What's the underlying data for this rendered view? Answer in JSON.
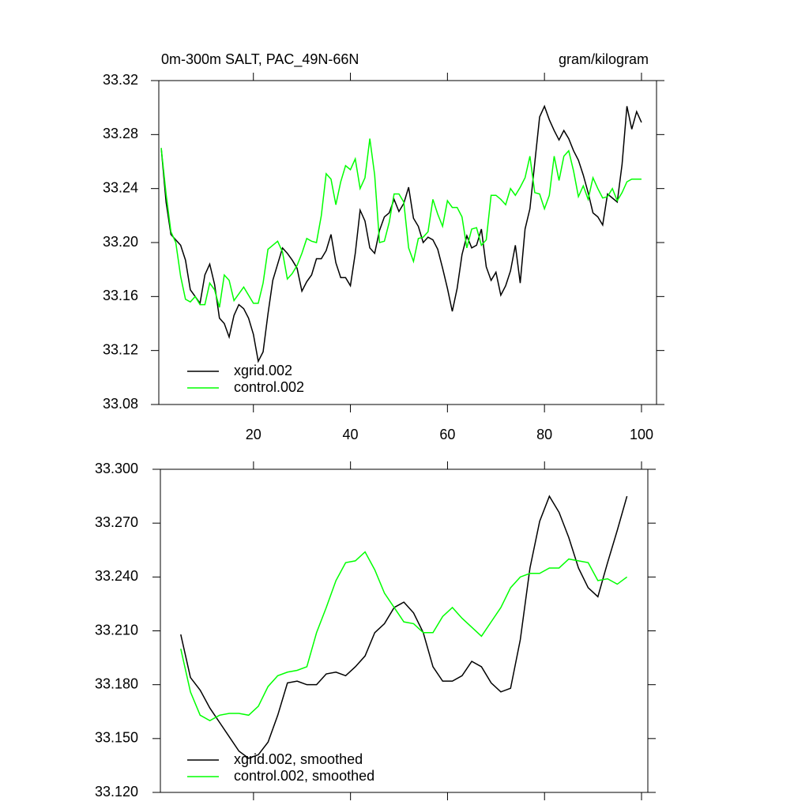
{
  "chart_data": [
    {
      "type": "line",
      "title": "0m-300m SALT, PAC_49N-66N",
      "units": "gram/kilogram",
      "x": [
        1,
        2,
        3,
        4,
        5,
        6,
        7,
        8,
        9,
        10,
        11,
        12,
        13,
        14,
        15,
        16,
        17,
        18,
        19,
        20,
        21,
        22,
        23,
        24,
        25,
        26,
        27,
        28,
        29,
        30,
        31,
        32,
        33,
        34,
        35,
        36,
        37,
        38,
        39,
        40,
        41,
        42,
        43,
        44,
        45,
        46,
        47,
        48,
        49,
        50,
        51,
        52,
        53,
        54,
        55,
        56,
        57,
        58,
        59,
        60,
        61,
        62,
        63,
        64,
        65,
        66,
        67,
        68,
        69,
        70,
        71,
        72,
        73,
        74,
        75,
        76,
        77,
        78,
        79,
        80,
        81,
        82,
        83,
        84,
        85,
        86,
        87,
        88,
        89,
        90,
        91,
        92,
        93,
        94,
        95,
        96,
        97,
        98,
        99,
        100
      ],
      "series": [
        {
          "name": "xgrid.002",
          "color": "#000000",
          "values": [
            33.27,
            33.23,
            33.206,
            33.202,
            33.198,
            33.187,
            33.165,
            33.16,
            33.155,
            33.176,
            33.184,
            33.169,
            33.144,
            33.14,
            33.13,
            33.146,
            33.154,
            33.151,
            33.144,
            33.132,
            33.112,
            33.119,
            33.147,
            33.172,
            33.184,
            33.196,
            33.192,
            33.187,
            33.181,
            33.164,
            33.171,
            33.176,
            33.188,
            33.188,
            33.194,
            33.206,
            33.185,
            33.174,
            33.174,
            33.168,
            33.192,
            33.224,
            33.216,
            33.196,
            33.192,
            33.209,
            33.219,
            33.222,
            33.232,
            33.223,
            33.229,
            33.241,
            33.218,
            33.212,
            33.2,
            33.204,
            33.202,
            33.195,
            33.181,
            33.166,
            33.149,
            33.166,
            33.191,
            33.205,
            33.196,
            33.198,
            33.21,
            33.182,
            33.172,
            33.178,
            33.161,
            33.168,
            33.179,
            33.198,
            33.17,
            33.21,
            33.225,
            33.259,
            33.293,
            33.301,
            33.291,
            33.283,
            33.276,
            33.283,
            33.277,
            33.268,
            33.261,
            33.25,
            33.237,
            33.222,
            33.219,
            33.213,
            33.236,
            33.233,
            33.23,
            33.258,
            33.301,
            33.284,
            33.297,
            33.289
          ]
        },
        {
          "name": "control.002",
          "color": "#00ff00",
          "values": [
            33.27,
            33.236,
            33.208,
            33.2,
            33.175,
            33.158,
            33.156,
            33.16,
            33.154,
            33.154,
            33.17,
            33.165,
            33.152,
            33.176,
            33.172,
            33.157,
            33.162,
            33.167,
            33.161,
            33.155,
            33.155,
            33.17,
            33.195,
            33.198,
            33.201,
            33.193,
            33.173,
            33.177,
            33.183,
            33.192,
            33.203,
            33.201,
            33.2,
            33.22,
            33.251,
            33.247,
            33.228,
            33.245,
            33.257,
            33.254,
            33.262,
            33.24,
            33.248,
            33.277,
            33.25,
            33.2,
            33.201,
            33.215,
            33.236,
            33.236,
            33.23,
            33.196,
            33.186,
            33.203,
            33.204,
            33.208,
            33.232,
            33.221,
            33.212,
            33.231,
            33.226,
            33.226,
            33.219,
            33.196,
            33.21,
            33.211,
            33.198,
            33.202,
            33.235,
            33.235,
            33.232,
            33.228,
            33.24,
            33.235,
            33.241,
            33.248,
            33.264,
            33.237,
            33.236,
            33.225,
            33.235,
            33.264,
            33.246,
            33.264,
            33.268,
            33.253,
            33.234,
            33.242,
            33.232,
            33.248,
            33.24,
            33.233,
            33.234,
            33.24,
            33.231,
            33.237,
            33.245,
            33.247,
            33.247,
            33.247
          ]
        }
      ],
      "xlim": [
        0.5,
        103.1
      ],
      "xticks": [
        20,
        40,
        60,
        80,
        100
      ],
      "show_xtick_labels": true,
      "ylim": [
        33.08,
        33.32
      ],
      "yticks": [
        33.08,
        33.12,
        33.16,
        {
          "value": 33.2,
          "label": "33.20"
        },
        33.24,
        33.28,
        33.32
      ],
      "legend": "lower left"
    },
    {
      "type": "line",
      "x": [
        5,
        7,
        9,
        11,
        13,
        15,
        17,
        19,
        21,
        23,
        25,
        27,
        29,
        31,
        33,
        35,
        37,
        39,
        41,
        43,
        45,
        47,
        49,
        51,
        53,
        55,
        57,
        59,
        61,
        63,
        65,
        67,
        69,
        71,
        73,
        75,
        77,
        79,
        81,
        83,
        85,
        87,
        89,
        91,
        93,
        95,
        97
      ],
      "series": [
        {
          "name": "xgrid.002, smoothed",
          "color": "#000000",
          "values": [
            33.208,
            33.184,
            33.177,
            33.167,
            33.159,
            33.151,
            33.143,
            33.139,
            33.141,
            33.148,
            33.163,
            33.181,
            33.182,
            33.18,
            33.18,
            33.186,
            33.187,
            33.185,
            33.19,
            33.196,
            33.209,
            33.214,
            33.223,
            33.226,
            33.22,
            33.209,
            33.19,
            33.182,
            33.182,
            33.185,
            33.193,
            33.19,
            33.181,
            33.176,
            33.178,
            33.205,
            33.245,
            33.271,
            33.285,
            33.276,
            33.262,
            33.245,
            33.234,
            33.229,
            33.248,
            33.266,
            33.285
          ]
        },
        {
          "name": "control.002, smoothed",
          "color": "#00ff00",
          "values": [
            33.2,
            33.176,
            33.163,
            33.16,
            33.163,
            33.164,
            33.164,
            33.163,
            33.168,
            33.179,
            33.185,
            33.187,
            33.188,
            33.19,
            33.209,
            33.223,
            33.238,
            33.248,
            33.249,
            33.254,
            33.244,
            33.231,
            33.223,
            33.215,
            33.214,
            33.209,
            33.209,
            33.218,
            33.223,
            33.217,
            33.212,
            33.207,
            33.215,
            33.223,
            33.234,
            33.24,
            33.242,
            33.242,
            33.245,
            33.245,
            33.25,
            33.249,
            33.248,
            33.238,
            33.239,
            33.236,
            33.24
          ]
        }
      ],
      "xlim": [
        0.8,
        101.3
      ],
      "xticks": [
        20,
        40,
        60,
        80,
        100
      ],
      "show_xtick_labels": false,
      "ylim": [
        33.12,
        33.3
      ],
      "yticks": [
        {
          "value": 33.12,
          "label": "33.120"
        },
        {
          "value": 33.15,
          "label": "33.150"
        },
        {
          "value": 33.18,
          "label": "33.180"
        },
        {
          "value": 33.21,
          "label": "33.210"
        },
        {
          "value": 33.24,
          "label": "33.240"
        },
        {
          "value": 33.27,
          "label": "33.270"
        },
        {
          "value": 33.3,
          "label": "33.300"
        }
      ],
      "legend": "lower left"
    }
  ]
}
